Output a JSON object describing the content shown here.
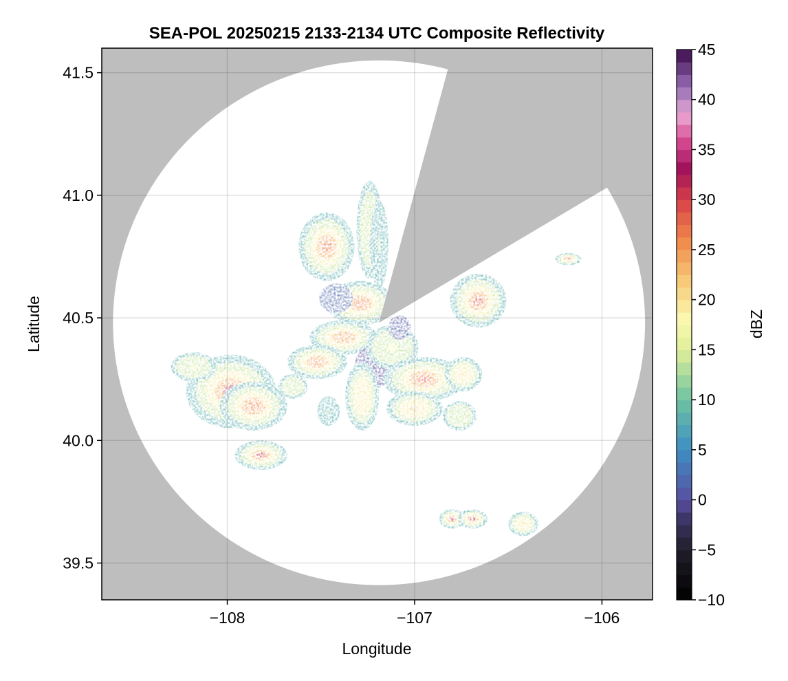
{
  "chart_data": {
    "type": "heatmap",
    "title": "SEA-POL 20250215 2133-2134 UTC Composite Reflectivity",
    "xlabel": "Longitude",
    "ylabel": "Latitude",
    "xlim": [
      -108.67,
      -105.73
    ],
    "ylim": [
      39.35,
      41.6
    ],
    "xticks": [
      -108,
      -107,
      -106
    ],
    "xtick_labels": [
      "−108",
      "−107",
      "−106"
    ],
    "yticks": [
      39.5,
      40.0,
      40.5,
      41.0,
      41.5
    ],
    "ytick_labels": [
      "39.5",
      "40.0",
      "40.5",
      "41.0",
      "41.5"
    ],
    "grid": true,
    "background_color": "#bebebe",
    "coverage_color": "#ffffff",
    "radar": {
      "center_lon": -107.19,
      "center_lat": 40.48,
      "range_lon": 1.42,
      "range_lat": 1.07,
      "blocked_sector": {
        "from_deg": 15,
        "to_deg": 59
      }
    },
    "colorbar": {
      "label": "dBZ",
      "min": -10,
      "max": 45,
      "ticks": [
        -10,
        -5,
        0,
        5,
        10,
        15,
        20,
        25,
        30,
        35,
        40,
        45
      ],
      "tick_labels": [
        "−10",
        "−5",
        "0",
        "5",
        "10",
        "15",
        "20",
        "25",
        "30",
        "35",
        "40",
        "45"
      ],
      "colormap_stops": [
        {
          "v": -10,
          "c": "#000000"
        },
        {
          "v": -5,
          "c": "#221e2a"
        },
        {
          "v": -2,
          "c": "#3b3565"
        },
        {
          "v": 0,
          "c": "#5a4fa0"
        },
        {
          "v": 5,
          "c": "#3d8ec3"
        },
        {
          "v": 10,
          "c": "#6ec3a2"
        },
        {
          "v": 15,
          "c": "#e1ef9a"
        },
        {
          "v": 18,
          "c": "#fbf8b0"
        },
        {
          "v": 22,
          "c": "#f7c878"
        },
        {
          "v": 26,
          "c": "#f0884a"
        },
        {
          "v": 30,
          "c": "#d7404a"
        },
        {
          "v": 33,
          "c": "#a0115a"
        },
        {
          "v": 36,
          "c": "#d94c94"
        },
        {
          "v": 38.5,
          "c": "#eba9d4"
        },
        {
          "v": 40,
          "c": "#b88ac6"
        },
        {
          "v": 42,
          "c": "#855aa3"
        },
        {
          "v": 45,
          "c": "#3b0a4b"
        }
      ]
    },
    "echo_cells": [
      {
        "lon": -107.98,
        "lat": 40.2,
        "rlon": 0.24,
        "rlat": 0.15,
        "peak": 32
      },
      {
        "lon": -107.86,
        "lat": 40.14,
        "rlon": 0.18,
        "rlat": 0.1,
        "peak": 26
      },
      {
        "lon": -108.18,
        "lat": 40.3,
        "rlon": 0.12,
        "rlat": 0.06,
        "peak": 16
      },
      {
        "lon": -107.82,
        "lat": 39.94,
        "rlon": 0.14,
        "rlat": 0.06,
        "peak": 31
      },
      {
        "lon": -107.47,
        "lat": 40.79,
        "rlon": 0.15,
        "rlat": 0.14,
        "peak": 27
      },
      {
        "lon": -107.24,
        "lat": 40.86,
        "rlon": 0.07,
        "rlat": 0.2,
        "peak": 15
      },
      {
        "lon": -107.19,
        "lat": 40.8,
        "rlon": 0.05,
        "rlat": 0.18,
        "peak": 13
      },
      {
        "lon": -107.29,
        "lat": 40.56,
        "rlon": 0.18,
        "rlat": 0.09,
        "peak": 27
      },
      {
        "lon": -107.42,
        "lat": 40.58,
        "rlon": 0.09,
        "rlat": 0.06,
        "peak": 2
      },
      {
        "lon": -107.38,
        "lat": 40.42,
        "rlon": 0.18,
        "rlat": 0.07,
        "peak": 24
      },
      {
        "lon": -107.52,
        "lat": 40.32,
        "rlon": 0.16,
        "rlat": 0.07,
        "peak": 26
      },
      {
        "lon": -107.22,
        "lat": 40.3,
        "rlon": 0.1,
        "rlat": 0.09,
        "peak": 0
      },
      {
        "lon": -107.28,
        "lat": 40.18,
        "rlon": 0.09,
        "rlat": 0.14,
        "peak": 19
      },
      {
        "lon": -107.12,
        "lat": 40.38,
        "rlon": 0.14,
        "rlat": 0.09,
        "peak": 18
      },
      {
        "lon": -106.95,
        "lat": 40.25,
        "rlon": 0.22,
        "rlat": 0.09,
        "peak": 28
      },
      {
        "lon": -107.0,
        "lat": 40.13,
        "rlon": 0.15,
        "rlat": 0.07,
        "peak": 22
      },
      {
        "lon": -107.08,
        "lat": 40.46,
        "rlon": 0.06,
        "rlat": 0.05,
        "peak": 1
      },
      {
        "lon": -106.74,
        "lat": 40.27,
        "rlon": 0.1,
        "rlat": 0.07,
        "peak": 20
      },
      {
        "lon": -106.76,
        "lat": 40.1,
        "rlon": 0.09,
        "rlat": 0.06,
        "peak": 14
      },
      {
        "lon": -106.66,
        "lat": 40.57,
        "rlon": 0.15,
        "rlat": 0.11,
        "peak": 29
      },
      {
        "lon": -106.18,
        "lat": 40.74,
        "rlon": 0.07,
        "rlat": 0.025,
        "peak": 28
      },
      {
        "lon": -106.8,
        "lat": 39.68,
        "rlon": 0.07,
        "rlat": 0.04,
        "peak": 32
      },
      {
        "lon": -106.69,
        "lat": 39.68,
        "rlon": 0.08,
        "rlat": 0.04,
        "peak": 33
      },
      {
        "lon": -106.42,
        "lat": 39.66,
        "rlon": 0.08,
        "rlat": 0.05,
        "peak": 21
      },
      {
        "lon": -107.65,
        "lat": 40.22,
        "rlon": 0.08,
        "rlat": 0.05,
        "peak": 14
      },
      {
        "lon": -107.46,
        "lat": 40.12,
        "rlon": 0.06,
        "rlat": 0.06,
        "peak": 12
      }
    ]
  }
}
